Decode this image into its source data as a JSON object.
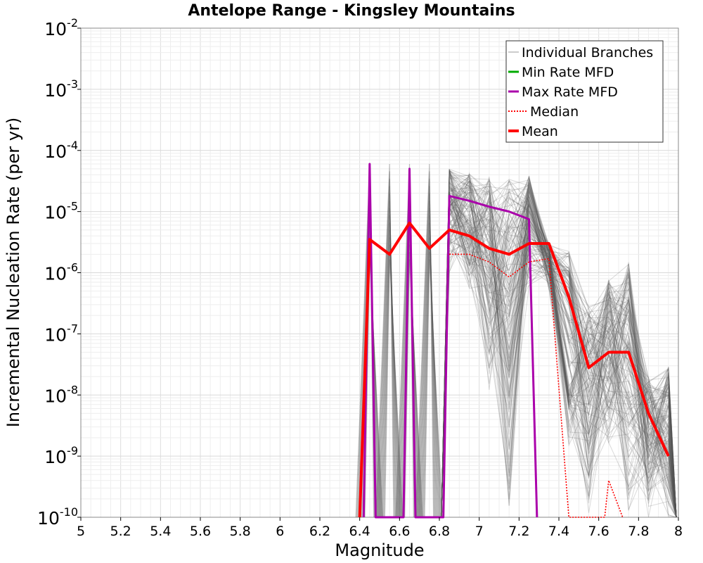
{
  "chart_data": {
    "type": "line",
    "title": "Antelope Range - Kingsley Mountains",
    "xlabel": "Magnitude",
    "ylabel": "Incremental Nucleation Rate (per yr)",
    "x_scale": "linear",
    "y_scale": "log",
    "xlim": [
      5,
      8
    ],
    "ylim": [
      1e-10,
      0.01
    ],
    "grid": true,
    "legend_position": "top-right",
    "x_ticks": [
      "5",
      "5.2",
      "5.4",
      "5.6",
      "5.8",
      "6",
      "6.2",
      "6.4",
      "6.6",
      "6.8",
      "7",
      "7.2",
      "7.4",
      "7.6",
      "7.8",
      "8"
    ],
    "y_ticks": [
      {
        "value": 1e-10,
        "base": "10",
        "exp": "-10"
      },
      {
        "value": 1e-09,
        "base": "10",
        "exp": "-9"
      },
      {
        "value": 1e-08,
        "base": "10",
        "exp": "-8"
      },
      {
        "value": 1e-07,
        "base": "10",
        "exp": "-7"
      },
      {
        "value": 1e-06,
        "base": "10",
        "exp": "-6"
      },
      {
        "value": 1e-05,
        "base": "10",
        "exp": "-5"
      },
      {
        "value": 0.0001,
        "base": "10",
        "exp": "-4"
      },
      {
        "value": 0.001,
        "base": "10",
        "exp": "-3"
      },
      {
        "value": 0.01,
        "base": "10",
        "exp": "-2"
      }
    ],
    "series": [
      {
        "name": "Min Rate MFD",
        "color": "#00aa00",
        "style": "solid",
        "points": []
      },
      {
        "name": "Max Rate MFD",
        "color": "#aa00aa",
        "style": "solid",
        "points": [
          [
            6.42,
            1e-10
          ],
          [
            6.45,
            6e-05
          ],
          [
            6.48,
            1e-10
          ],
          [
            6.62,
            1e-10
          ],
          [
            6.65,
            5e-05
          ],
          [
            6.68,
            1e-10
          ],
          [
            6.82,
            1e-10
          ],
          [
            6.85,
            1.8e-05
          ],
          [
            6.95,
            1.5e-05
          ],
          [
            7.05,
            1.2e-05
          ],
          [
            7.15,
            1e-05
          ],
          [
            7.25,
            7.5e-06
          ],
          [
            7.29,
            1e-10
          ]
        ]
      },
      {
        "name": "Median",
        "color": "#ff0000",
        "style": "dotted",
        "points": [
          [
            6.85,
            2e-06
          ],
          [
            6.95,
            2e-06
          ],
          [
            7.05,
            1.5e-06
          ],
          [
            7.15,
            8.5e-07
          ],
          [
            7.25,
            1.5e-06
          ],
          [
            7.35,
            1.7e-06
          ],
          [
            7.45,
            1e-10
          ],
          [
            7.63,
            1e-10
          ],
          [
            7.65,
            4e-10
          ],
          [
            7.72,
            1e-10
          ]
        ]
      },
      {
        "name": "Mean",
        "color": "#ff0000",
        "style": "solid",
        "points": [
          [
            6.4,
            1e-10
          ],
          [
            6.45,
            3.5e-06
          ],
          [
            6.55,
            2e-06
          ],
          [
            6.65,
            6.5e-06
          ],
          [
            6.75,
            2.5e-06
          ],
          [
            6.85,
            5e-06
          ],
          [
            6.95,
            4e-06
          ],
          [
            7.05,
            2.5e-06
          ],
          [
            7.15,
            2e-06
          ],
          [
            7.25,
            3e-06
          ],
          [
            7.35,
            3e-06
          ],
          [
            7.45,
            4e-07
          ],
          [
            7.55,
            2.8e-08
          ],
          [
            7.65,
            5e-08
          ],
          [
            7.75,
            5e-08
          ],
          [
            7.85,
            5e-09
          ],
          [
            7.95,
            1e-09
          ]
        ]
      }
    ],
    "branches": {
      "name": "Individual Branches",
      "color": "#555555",
      "spikes": [
        6.45,
        6.55,
        6.65,
        6.75
      ],
      "spike_top": 6e-05,
      "envelope": {
        "x": [
          6.85,
          6.95,
          7.05,
          7.15,
          7.25,
          7.35,
          7.45,
          7.55,
          7.65,
          7.75,
          7.85,
          7.95
        ],
        "upper": [
          5e-05,
          4.5e-05,
          4e-05,
          3.5e-05,
          4e-05,
          3e-06,
          3e-06,
          3e-07,
          8e-07,
          1.5e-06,
          2e-08,
          3e-08
        ],
        "lower": [
          1e-06,
          5e-07,
          1e-08,
          1e-10,
          5e-07,
          5e-07,
          1e-09,
          1e-10,
          1e-09,
          1e-10,
          1e-10,
          1e-10
        ]
      }
    },
    "legend": {
      "items": [
        {
          "label": "Individual Branches",
          "color": "#bbbbbb",
          "style": "thin"
        },
        {
          "label": "Min Rate MFD",
          "color": "#00aa00",
          "style": "solid"
        },
        {
          "label": "Max Rate MFD",
          "color": "#aa00aa",
          "style": "solid"
        },
        {
          "label": "Median",
          "color": "#ff0000",
          "style": "dotted"
        },
        {
          "label": "Mean",
          "color": "#ff0000",
          "style": "thick"
        }
      ]
    }
  }
}
